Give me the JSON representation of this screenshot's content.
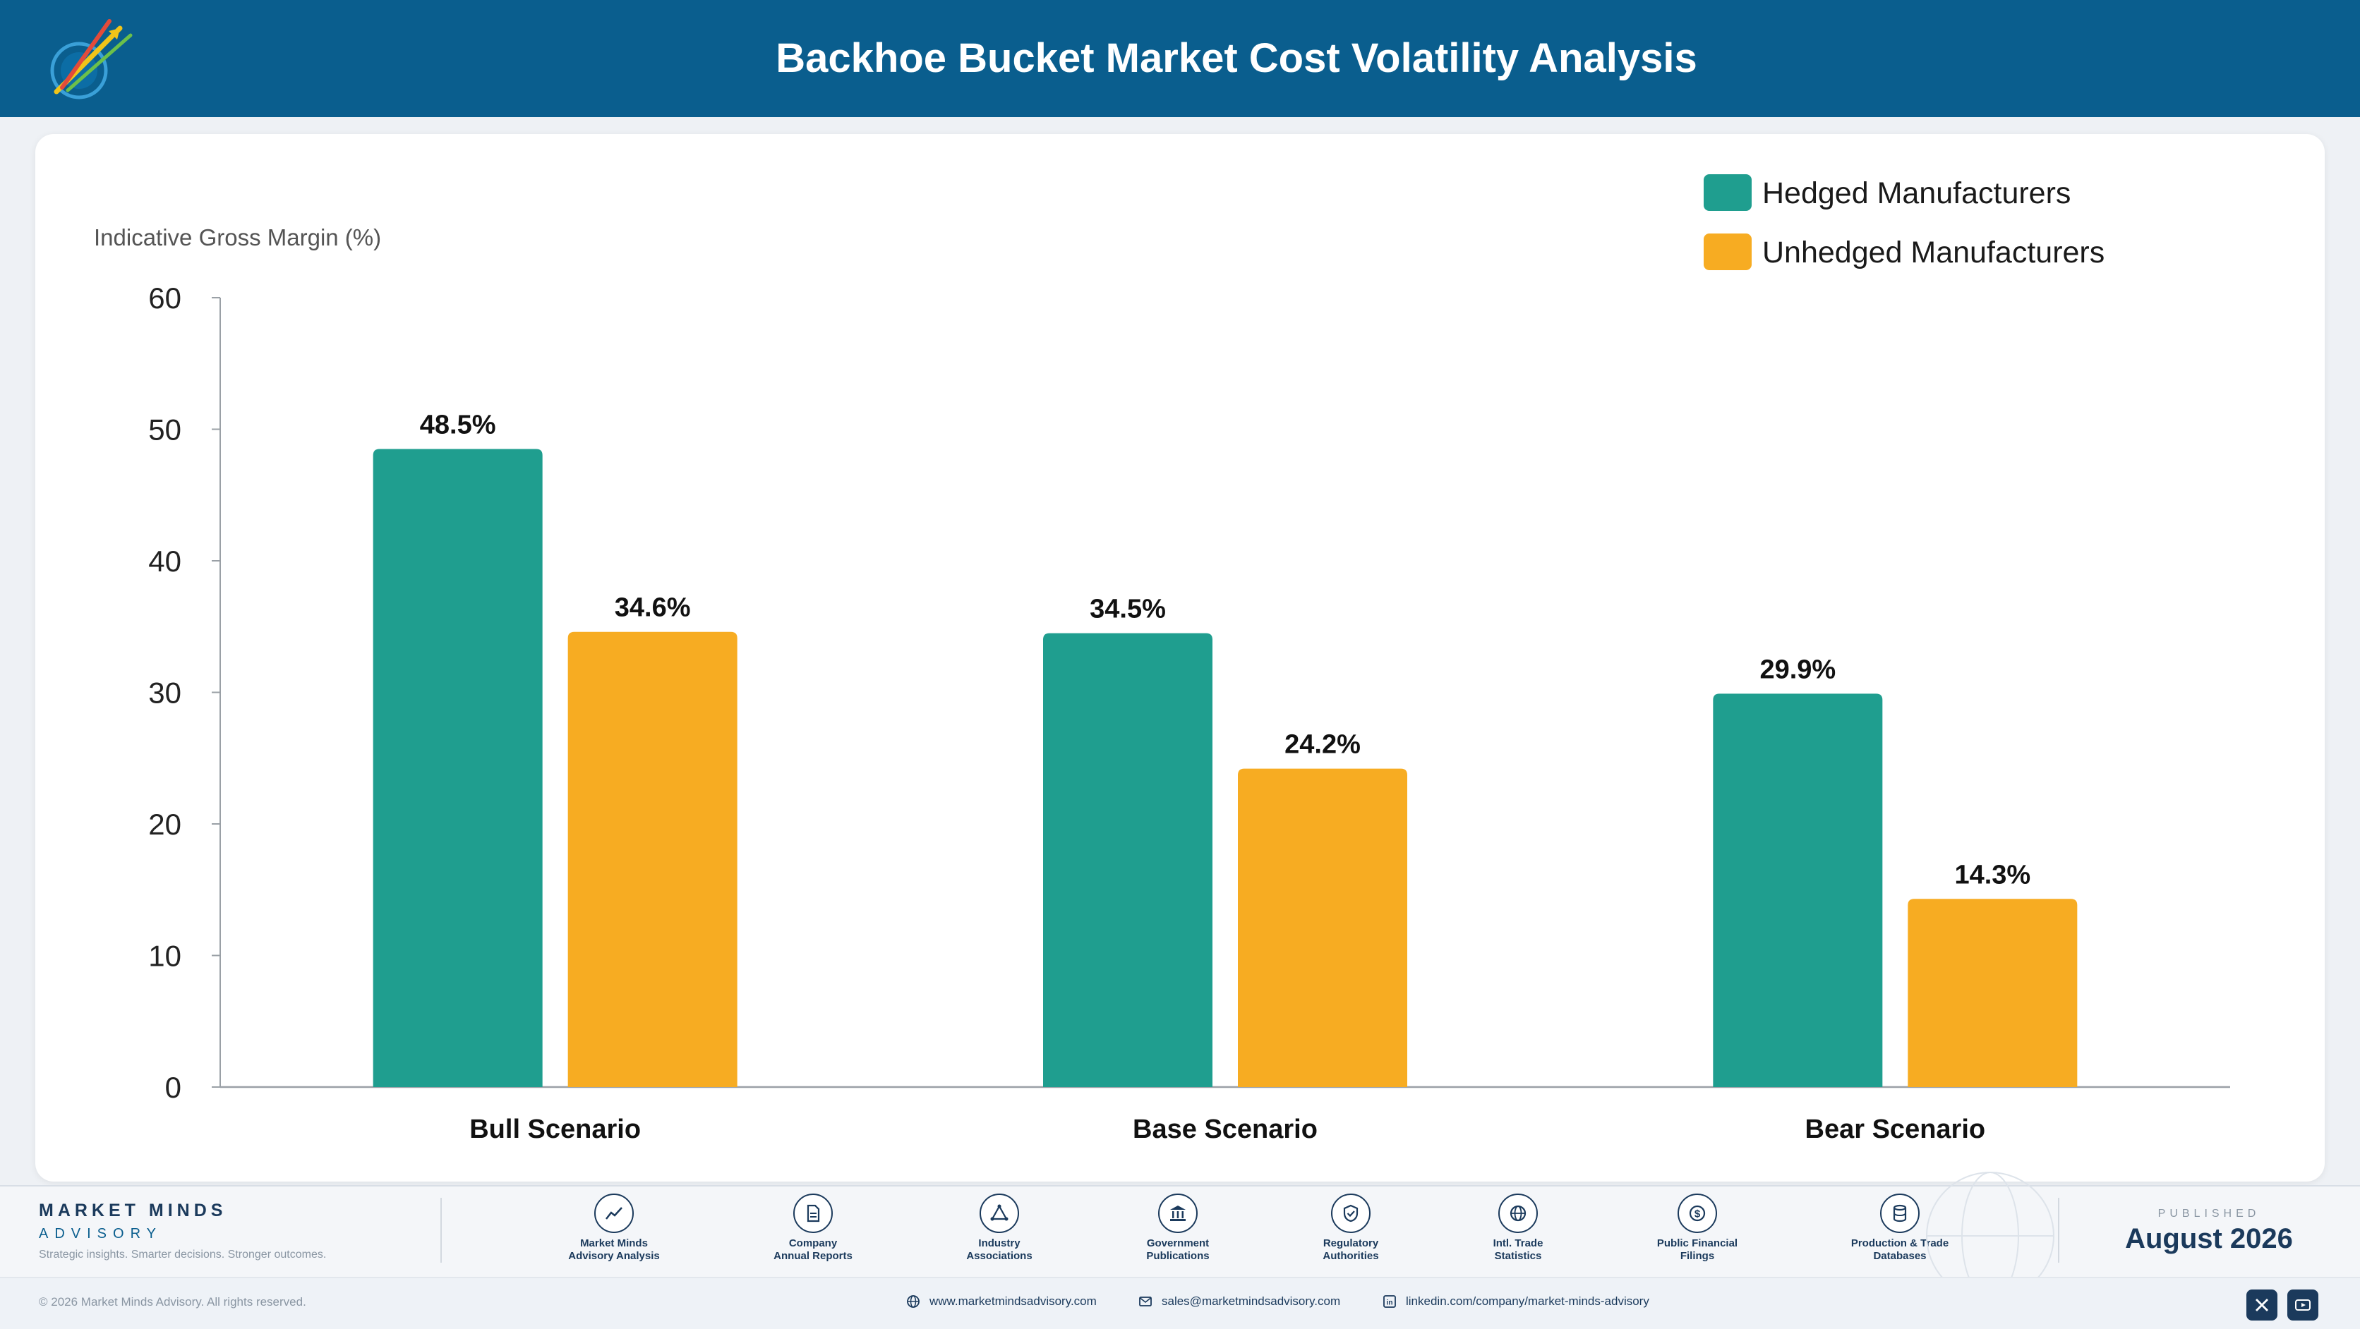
{
  "header": {
    "title": "Backhoe Bucket Market Cost Volatility Analysis"
  },
  "colors": {
    "hedged": "#1f9e8f",
    "unhedged": "#f7ac22",
    "header": "#0a5e8e",
    "navy": "#1b3a5c"
  },
  "chart_data": {
    "type": "bar",
    "ylabel": "Indicative Gross Margin (%)",
    "categories": [
      "Bull Scenario",
      "Base Scenario",
      "Bear Scenario"
    ],
    "series": [
      {
        "name": "Hedged Manufacturers",
        "values": [
          48.5,
          34.5,
          29.9
        ],
        "labels": [
          "48.5%",
          "34.5%",
          "29.9%"
        ]
      },
      {
        "name": "Unhedged Manufacturers",
        "values": [
          34.6,
          24.2,
          14.3
        ],
        "labels": [
          "34.6%",
          "24.2%",
          "14.3%"
        ]
      }
    ],
    "ylim": [
      0,
      60
    ],
    "yticks": [
      0,
      10,
      20,
      30,
      40,
      50,
      60
    ],
    "legend_position": "top-right",
    "grid": false
  },
  "footer": {
    "brand_name": "MARKET MINDS",
    "brand_sub": "ADVISORY",
    "tagline": "Strategic insights. Smarter decisions. Stronger outcomes.",
    "sources": [
      {
        "label": "Market Minds\nAdvisory Analysis",
        "icon": "chart-line-icon"
      },
      {
        "label": "Company\nAnnual Reports",
        "icon": "document-icon"
      },
      {
        "label": "Industry\nAssociations",
        "icon": "network-icon"
      },
      {
        "label": "Government\nPublications",
        "icon": "government-building-icon"
      },
      {
        "label": "Regulatory\nAuthorities",
        "icon": "shield-check-icon"
      },
      {
        "label": "Intl. Trade\nStatistics",
        "icon": "globe-icon"
      },
      {
        "label": "Public Financial\nFilings",
        "icon": "dollar-coin-icon"
      },
      {
        "label": "Production & Trade\nDatabases",
        "icon": "database-icon"
      }
    ],
    "published_label": "PUBLISHED",
    "published_date": "August 2026",
    "copyright": "© 2026 Market Minds Advisory. All rights reserved.",
    "website": "www.marketmindsadvisory.com",
    "email": "sales@marketmindsadvisory.com",
    "linkedin": "linkedin.com/company/market-minds-advisory"
  }
}
